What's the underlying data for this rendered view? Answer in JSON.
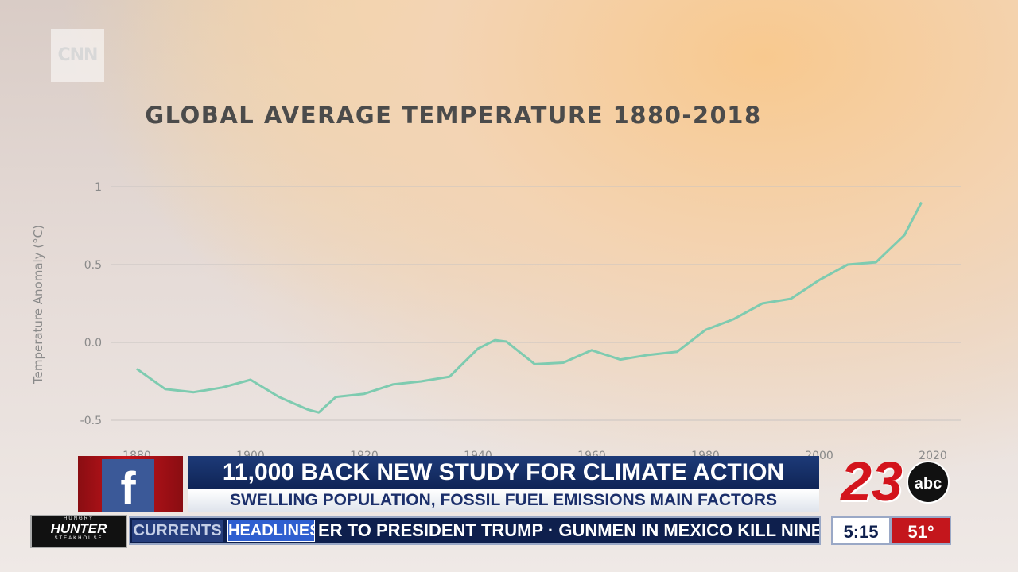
{
  "chart_data": {
    "type": "line",
    "title": "GLOBAL AVERAGE TEMPERATURE 1880-2018",
    "y_label": "Temperature Anomaly (°C)",
    "x": [
      1880,
      1885,
      1890,
      1895,
      1900,
      1905,
      1910,
      1912,
      1915,
      1920,
      1925,
      1930,
      1935,
      1940,
      1943,
      1945,
      1950,
      1955,
      1960,
      1965,
      1970,
      1975,
      1980,
      1985,
      1990,
      1995,
      2000,
      2005,
      2010,
      2015,
      2018
    ],
    "series": [
      {
        "name": "Global average temperature",
        "color": "#7ecbb0",
        "values": [
          -0.17,
          -0.3,
          -0.32,
          -0.29,
          -0.24,
          -0.35,
          -0.43,
          -0.45,
          -0.35,
          -0.33,
          -0.27,
          -0.25,
          -0.22,
          -0.04,
          0.015,
          0.005,
          -0.14,
          -0.13,
          -0.05,
          -0.11,
          -0.08,
          -0.06,
          0.08,
          0.15,
          0.25,
          0.28,
          0.4,
          0.5,
          0.515,
          0.69,
          0.9
        ]
      }
    ],
    "xlim": [
      1880,
      2020
    ],
    "xticks": [
      1880,
      1900,
      1920,
      1940,
      1960,
      1980,
      2000,
      2020
    ],
    "ylim": [
      -0.62,
      1.02
    ],
    "yticks": [
      {
        "value": -0.5,
        "label": "-0.5"
      },
      {
        "value": 0,
        "label": "0.0"
      },
      0.5,
      1
    ],
    "grid": true
  },
  "logo": "CNN",
  "lower_third": {
    "headline": "11,000 BACK NEW STUDY FOR CLIMATE ACTION",
    "subheadline": "SWELLING POPULATION, FOSSIL FUEL EMISSIONS MAIN FACTORS",
    "facebook": "f",
    "station": "23",
    "network": "abc",
    "ticker_tabs": [
      "CURRENTS",
      "HEADLINES"
    ],
    "ticker_text": "ER TO PRESIDENT TRUMP · GUNMEN IN MEXICO KILL NINE U",
    "sponsor": {
      "top": "HUNGRY",
      "name": "HUNTER",
      "bottom": "STEAKHOUSE"
    },
    "time": "5:15",
    "temperature": "51°"
  }
}
